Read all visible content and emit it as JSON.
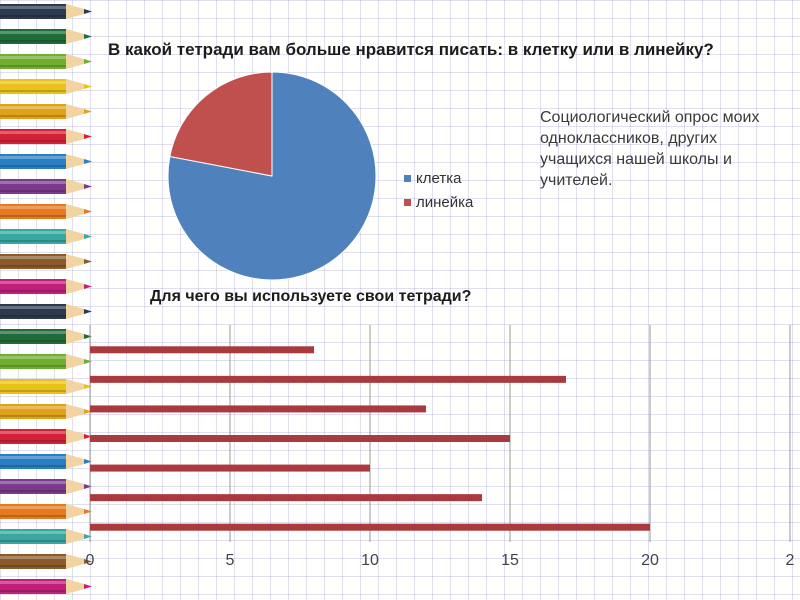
{
  "pie_title": "В какой тетради вам больше нравится писать: в клетку или в линейку?",
  "bar_title": "Для чего вы используете  свои тетради?",
  "survey_note": "Социологический опрос моих одноклассников, других учащихся нашей школы  и учителей.",
  "colors": {
    "blue": "#4f81bd",
    "red": "#c0504d",
    "bar": "#a93a3e"
  },
  "chart_data": [
    {
      "type": "pie",
      "title": "В какой тетради вам больше нравится писать: в клетку или в линейку?",
      "categories": [
        "клетка",
        "линейка"
      ],
      "values": [
        78,
        22
      ],
      "legend": "right"
    },
    {
      "type": "bar",
      "orientation": "horizontal",
      "title": "Для чего вы используете  свои тетради?",
      "values": [
        20,
        14,
        10,
        15,
        12,
        17,
        8
      ],
      "xlim": [
        0,
        25
      ],
      "xticks": [
        "0",
        "5",
        "10",
        "15",
        "20",
        "2"
      ],
      "grid": true
    }
  ]
}
